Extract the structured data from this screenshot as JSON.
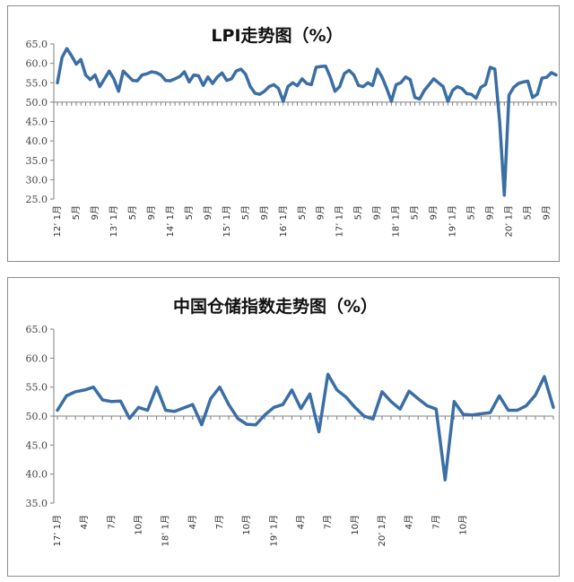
{
  "colors": {
    "line": "#3a6ea5",
    "axis": "#808080",
    "text": "#333333"
  },
  "chart_data": [
    {
      "type": "line",
      "title": "LPI走势图（%）",
      "ylim": [
        25,
        65
      ],
      "yticks": [
        "65.0",
        "60.0",
        "55.0",
        "50.0",
        "45.0",
        "40.0",
        "35.0",
        "30.0",
        "25.0"
      ],
      "baseline": 50,
      "grid": false,
      "legend": "none",
      "xticks": [
        "12’ 1月",
        "5月",
        "9月",
        "13’ 1月",
        "5月",
        "9月",
        "14’ 1月",
        "5月",
        "9月",
        "15’ 1月",
        "5月",
        "9月",
        "16’ 1月",
        "5月",
        "9月",
        "17’ 1月",
        "5月",
        "9月",
        "18’ 1月",
        "5月",
        "9月",
        "19’ 1月",
        "5月",
        "9月",
        "20’ 1月",
        "5月",
        "9月"
      ],
      "values": [
        55,
        61.5,
        63.8,
        62,
        59.8,
        61,
        57,
        55.8,
        57,
        54,
        56,
        58,
        56,
        52.8,
        58,
        56.8,
        55.6,
        55.5,
        57,
        57.3,
        57.8,
        57.6,
        57,
        55.6,
        55.5,
        56,
        56.6,
        57.8,
        55.2,
        57,
        56.8,
        54.3,
        56.5,
        54.8,
        56.5,
        57.5,
        55.6,
        56,
        58,
        58.5,
        57.2,
        54,
        52.3,
        52,
        52.8,
        54,
        54.5,
        53.5,
        50.2,
        54,
        55,
        54.2,
        56,
        54.8,
        54.5,
        59,
        59.2,
        59.3,
        56.5,
        52.8,
        54,
        57.4,
        58.2,
        57,
        54.3,
        54,
        55,
        54.3,
        58.5,
        56.5,
        53.5,
        50.2,
        54.5,
        55,
        56.5,
        55.8,
        51.2,
        50.8,
        53,
        54.5,
        56,
        55,
        54,
        50.2,
        53,
        54,
        53.5,
        52.2,
        52,
        51,
        53.8,
        54.5,
        59,
        58.5,
        45,
        26,
        51.8,
        53.8,
        54.8,
        55.2,
        55.4,
        51.2,
        52,
        56.2,
        56.4,
        57.6,
        57
      ]
    },
    {
      "type": "line",
      "title": "中国仓储指数走势图（%）",
      "ylim": [
        35,
        65
      ],
      "yticks": [
        "65.0",
        "60.0",
        "55.0",
        "50.0",
        "45.0",
        "40.0",
        "35.0"
      ],
      "baseline": 50,
      "grid": false,
      "legend": "none",
      "xticks": [
        "17’ 1月",
        "4月",
        "7月",
        "10月",
        "18’ 1月",
        "4月",
        "7月",
        "10月",
        "19’ 1月",
        "4月",
        "7月",
        "10月",
        "20’ 1月",
        "4月",
        "7月",
        "10月"
      ],
      "values": [
        51,
        53.5,
        54.2,
        54.5,
        55,
        52.8,
        52.5,
        52.6,
        49.6,
        51.5,
        51,
        55,
        51,
        50.8,
        51.4,
        52,
        48.5,
        53,
        55,
        52,
        49.6,
        48.6,
        48.5,
        50.2,
        51.5,
        52,
        54.5,
        51.3,
        53.8,
        47.3,
        57.2,
        54.5,
        53.3,
        51.5,
        50,
        49.5,
        54.2,
        52.5,
        51.2,
        54.3,
        53,
        51.8,
        51.2,
        39,
        52.5,
        50.3,
        50.2,
        50.4,
        50.6,
        53.5,
        51,
        51,
        51.8,
        53.6,
        56.8,
        51.5
      ]
    }
  ]
}
